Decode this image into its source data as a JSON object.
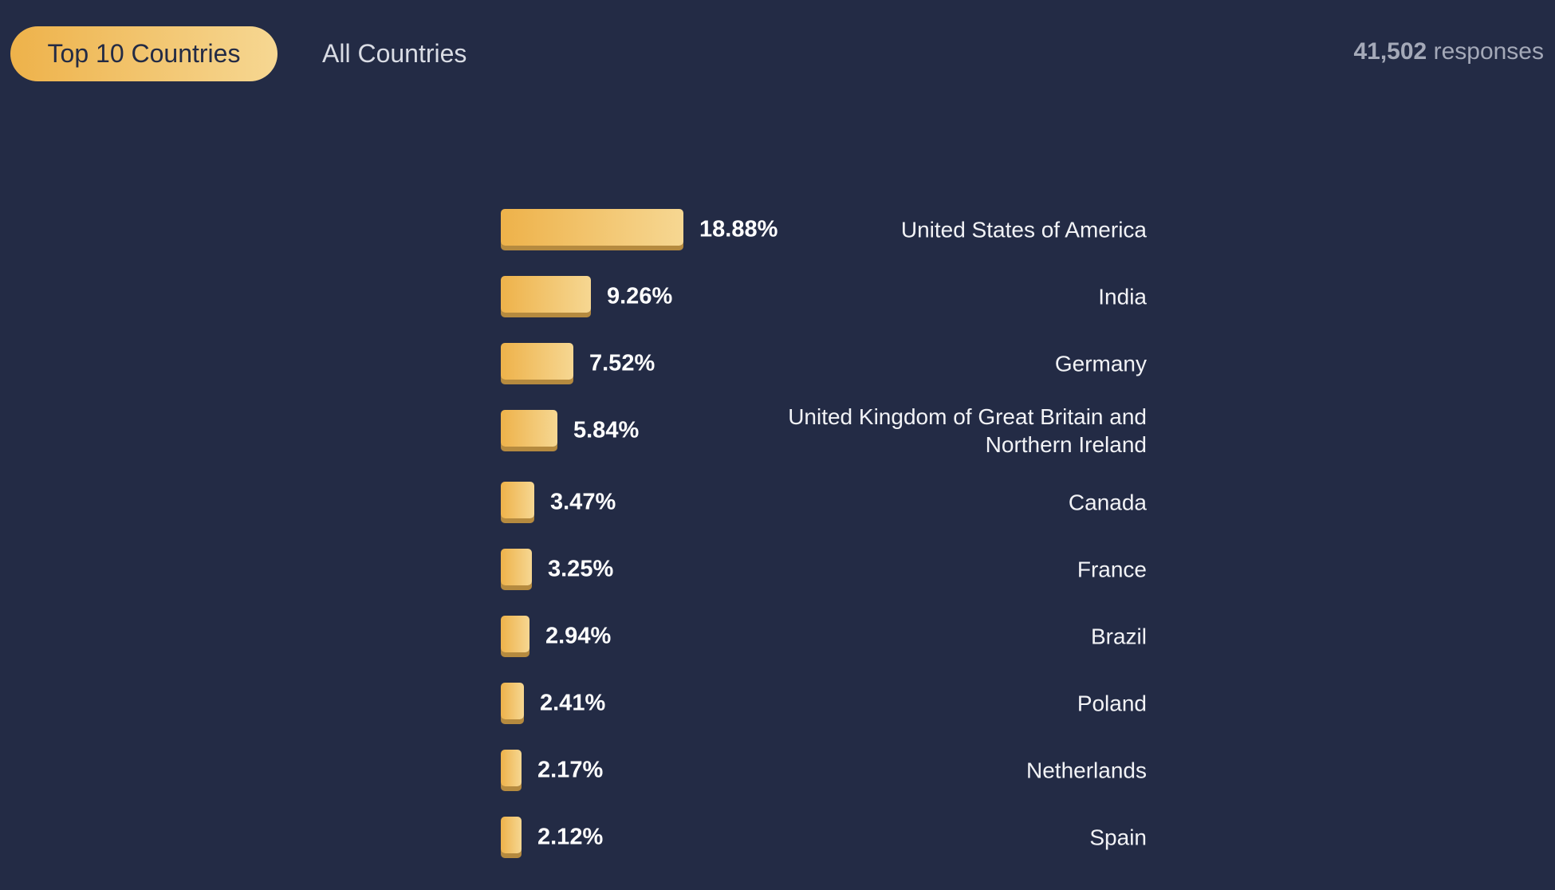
{
  "tabs": [
    {
      "label": "Top 10 Countries",
      "active": true
    },
    {
      "label": "All Countries",
      "active": false
    }
  ],
  "responses": {
    "count": "41,502",
    "label": "responses"
  },
  "colors": {
    "background": "#232b45",
    "bar_start": "#eeb24a",
    "bar_end": "#f6d792"
  },
  "chart_data": {
    "type": "bar",
    "orientation": "horizontal",
    "categories": [
      "United States of America",
      "India",
      "Germany",
      "United Kingdom of Great Britain and Northern Ireland",
      "Canada",
      "France",
      "Brazil",
      "Poland",
      "Netherlands",
      "Spain"
    ],
    "values": [
      18.88,
      9.26,
      7.52,
      5.84,
      3.47,
      3.25,
      2.94,
      2.41,
      2.17,
      2.12
    ],
    "value_labels": [
      "18.88%",
      "9.26%",
      "7.52%",
      "5.84%",
      "3.47%",
      "3.25%",
      "2.94%",
      "2.41%",
      "2.17%",
      "2.12%"
    ],
    "unit": "%",
    "grid": false
  }
}
